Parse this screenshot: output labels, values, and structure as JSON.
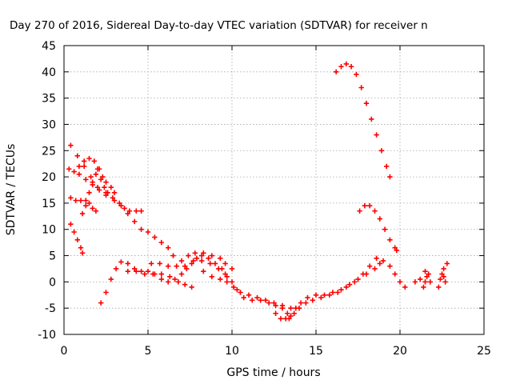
{
  "chart_data": {
    "type": "scatter",
    "title": "Day 270 of 2016, Sidereal Day-to-day VTEC variation (SDTVAR) for receiver n",
    "xlabel": "GPS time / hours",
    "ylabel": "SDTVAR / TECUs",
    "xlim": [
      0,
      25
    ],
    "ylim": [
      -10,
      45
    ],
    "xticks": [
      "0",
      "5",
      "10",
      "15",
      "20",
      "25"
    ],
    "yticks": [
      "-10",
      "-5",
      "0",
      "5",
      "10",
      "15",
      "20",
      "25",
      "30",
      "35",
      "40",
      "45"
    ],
    "xtick_values": [
      0,
      5,
      10,
      15,
      20,
      25
    ],
    "ytick_values": [
      -10,
      -5,
      0,
      5,
      10,
      15,
      20,
      25,
      30,
      35,
      40,
      45
    ],
    "grid": true,
    "marker": "plus",
    "color": "#ff0000",
    "series": [
      {
        "name": "s1",
        "points": [
          [
            0.4,
            26
          ],
          [
            0.8,
            24
          ],
          [
            1.2,
            22
          ],
          [
            1.6,
            20
          ],
          [
            2,
            18
          ],
          [
            2.5,
            16.5
          ],
          [
            3,
            15.5
          ],
          [
            3.4,
            14.5
          ],
          [
            3.8,
            13
          ],
          [
            4.2,
            11.5
          ],
          [
            4.6,
            10
          ],
          [
            5,
            9.5
          ],
          [
            5.4,
            8.5
          ],
          [
            5.8,
            7.5
          ],
          [
            6.2,
            6.5
          ],
          [
            6.5,
            5
          ]
        ]
      },
      {
        "name": "s2",
        "points": [
          [
            0.3,
            21.5
          ],
          [
            0.6,
            21
          ],
          [
            0.9,
            20.5
          ],
          [
            1.3,
            19.5
          ],
          [
            1.7,
            18.5
          ],
          [
            2.1,
            17.5
          ],
          [
            2.5,
            17
          ],
          [
            2.9,
            16
          ],
          [
            3.3,
            15
          ],
          [
            3.6,
            14
          ],
          [
            3.9,
            13.5
          ],
          [
            4.3,
            13.5
          ],
          [
            4.6,
            13.5
          ]
        ]
      },
      {
        "name": "s3",
        "points": [
          [
            0.4,
            16
          ],
          [
            0.7,
            15.5
          ],
          [
            1,
            15.5
          ],
          [
            1.3,
            15.5
          ],
          [
            1.5,
            15
          ],
          [
            1.7,
            14
          ],
          [
            1.9,
            13.5
          ]
        ]
      },
      {
        "name": "s4",
        "points": [
          [
            1.1,
            13
          ],
          [
            1.3,
            14.5
          ],
          [
            1.5,
            17
          ],
          [
            1.7,
            19
          ],
          [
            1.9,
            20.5
          ],
          [
            2.1,
            21.5
          ],
          [
            2.3,
            20
          ],
          [
            2.5,
            19
          ],
          [
            2.8,
            18
          ],
          [
            3,
            17
          ]
        ]
      },
      {
        "name": "s5",
        "points": [
          [
            0.9,
            22
          ],
          [
            1.2,
            23
          ],
          [
            1.5,
            23.5
          ],
          [
            1.8,
            23
          ],
          [
            2,
            21.5
          ],
          [
            2.2,
            19.5
          ],
          [
            2.4,
            18
          ],
          [
            2.6,
            17
          ]
        ]
      },
      {
        "name": "s6",
        "points": [
          [
            0.4,
            11
          ],
          [
            0.6,
            9.5
          ],
          [
            0.8,
            8
          ],
          [
            1,
            6.5
          ],
          [
            1.1,
            5.5
          ]
        ]
      },
      {
        "name": "s7",
        "points": [
          [
            2.2,
            -4
          ],
          [
            2.5,
            -2
          ],
          [
            2.8,
            0.5
          ],
          [
            3.1,
            2.5
          ],
          [
            3.4,
            3.8
          ],
          [
            3.8,
            3.5
          ],
          [
            4.2,
            2.5
          ],
          [
            4.6,
            2
          ],
          [
            5,
            2
          ],
          [
            5.4,
            1.5
          ],
          [
            5.8,
            0.5
          ],
          [
            6.2,
            0
          ],
          [
            6.6,
            0.5
          ],
          [
            7,
            1.5
          ],
          [
            7.3,
            2.5
          ],
          [
            7.6,
            3.5
          ],
          [
            7.9,
            4.5
          ],
          [
            8.2,
            5
          ],
          [
            8.6,
            4.5
          ],
          [
            9,
            3.5
          ],
          [
            9.4,
            2.5
          ],
          [
            9.7,
            1
          ]
        ]
      },
      {
        "name": "s8",
        "points": [
          [
            3.8,
            2
          ],
          [
            4.3,
            2
          ],
          [
            4.8,
            1.5
          ],
          [
            5.3,
            1.5
          ],
          [
            5.8,
            1.5
          ],
          [
            6.3,
            1
          ],
          [
            6.8,
            0
          ],
          [
            7.2,
            -0.5
          ],
          [
            7.6,
            -1
          ]
        ]
      },
      {
        "name": "s9",
        "points": [
          [
            5.2,
            3.5
          ],
          [
            5.7,
            3.5
          ],
          [
            6.2,
            3
          ],
          [
            6.7,
            3
          ],
          [
            7.2,
            3
          ],
          [
            7.7,
            4
          ],
          [
            8.2,
            4
          ],
          [
            8.7,
            3.5
          ],
          [
            9.2,
            2.5
          ],
          [
            9.6,
            1.5
          ],
          [
            10,
            0
          ],
          [
            10.3,
            -1.5
          ],
          [
            10.7,
            -3
          ],
          [
            11.2,
            -3.5
          ],
          [
            11.7,
            -3.5
          ],
          [
            12.2,
            -4
          ],
          [
            12.6,
            -4.5
          ],
          [
            13,
            -5
          ],
          [
            13.3,
            -6
          ]
        ]
      },
      {
        "name": "s10",
        "points": [
          [
            7,
            4
          ],
          [
            7.4,
            5
          ],
          [
            7.8,
            5.5
          ],
          [
            8.3,
            5.5
          ],
          [
            8.8,
            5
          ],
          [
            9.3,
            4.5
          ],
          [
            9.6,
            3.5
          ],
          [
            10,
            2.5
          ]
        ]
      },
      {
        "name": "s11",
        "points": [
          [
            8.3,
            2
          ],
          [
            8.8,
            1
          ],
          [
            9.3,
            0.5
          ],
          [
            9.7,
            0
          ],
          [
            10.1,
            -1
          ],
          [
            10.5,
            -2
          ],
          [
            11,
            -2.5
          ],
          [
            11.5,
            -3
          ],
          [
            12,
            -3.5
          ],
          [
            12.5,
            -4
          ],
          [
            13,
            -4.5
          ],
          [
            13.5,
            -5
          ]
        ]
      },
      {
        "name": "s12",
        "points": [
          [
            12.6,
            -6
          ],
          [
            12.9,
            -7
          ],
          [
            13.2,
            -7
          ],
          [
            13.5,
            -6.5
          ],
          [
            13.8,
            -5
          ],
          [
            14.1,
            -4
          ],
          [
            14.5,
            -3
          ],
          [
            15,
            -2.5
          ],
          [
            15.5,
            -2.5
          ],
          [
            16,
            -2
          ],
          [
            16.5,
            -1.5
          ],
          [
            17,
            -0.5
          ],
          [
            17.5,
            0.5
          ],
          [
            18,
            1.5
          ],
          [
            18.5,
            2.5
          ],
          [
            18.8,
            3.5
          ]
        ]
      },
      {
        "name": "s13",
        "points": [
          [
            13.4,
            -7
          ],
          [
            13.7,
            -6
          ],
          [
            14,
            -5
          ],
          [
            14.4,
            -4
          ],
          [
            14.8,
            -3.5
          ],
          [
            15.3,
            -3
          ],
          [
            15.8,
            -2.5
          ],
          [
            16.3,
            -2
          ],
          [
            16.8,
            -1
          ],
          [
            17.3,
            0
          ],
          [
            17.8,
            1.5
          ],
          [
            18.2,
            3
          ],
          [
            18.6,
            4.5
          ],
          [
            19,
            4
          ],
          [
            19.4,
            3
          ],
          [
            19.7,
            1.5
          ],
          [
            20,
            0
          ],
          [
            20.3,
            -1
          ]
        ]
      },
      {
        "name": "s14",
        "points": [
          [
            17.6,
            13.5
          ],
          [
            17.9,
            14.5
          ],
          [
            18.2,
            14.5
          ],
          [
            18.5,
            13.5
          ],
          [
            18.8,
            12
          ],
          [
            19.1,
            10
          ],
          [
            19.4,
            8
          ],
          [
            19.7,
            6.5
          ],
          [
            19.8,
            6
          ]
        ]
      },
      {
        "name": "s15",
        "points": [
          [
            16.2,
            40
          ],
          [
            16.5,
            41
          ],
          [
            16.8,
            41.5
          ],
          [
            17.1,
            41
          ],
          [
            17.4,
            39.5
          ],
          [
            17.7,
            37
          ],
          [
            18,
            34
          ],
          [
            18.3,
            31
          ],
          [
            18.6,
            28
          ],
          [
            18.9,
            25
          ],
          [
            19.2,
            22
          ],
          [
            19.4,
            20
          ]
        ]
      },
      {
        "name": "s16",
        "points": [
          [
            21.4,
            -1
          ],
          [
            21.5,
            0
          ],
          [
            21.6,
            1
          ],
          [
            21.5,
            2
          ],
          [
            21.7,
            1.5
          ],
          [
            21.8,
            0
          ]
        ]
      },
      {
        "name": "s17",
        "points": [
          [
            22.3,
            -1
          ],
          [
            22.4,
            0.5
          ],
          [
            22.5,
            1.5
          ],
          [
            22.6,
            2.5
          ],
          [
            22.8,
            3.5
          ],
          [
            22.6,
            1
          ],
          [
            22.7,
            0
          ]
        ]
      },
      {
        "name": "s18",
        "points": [
          [
            20.9,
            0
          ],
          [
            21.2,
            0.5
          ]
        ]
      }
    ]
  }
}
